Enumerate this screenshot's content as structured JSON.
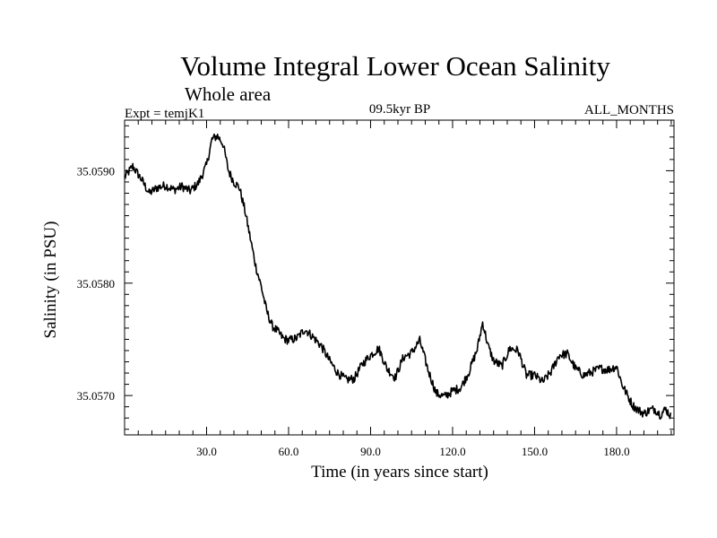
{
  "chart_data": {
    "type": "line",
    "title": "Volume Integral Lower Ocean Salinity",
    "subtitle": "Whole area",
    "experiment_label": "Expt = temjK1",
    "period_label": "09.5kyr BP",
    "months_label": "ALL_MONTHS",
    "xlabel": "Time (in years since start)",
    "ylabel": "Salinity (in PSU)",
    "xlim": [
      0,
      201
    ],
    "ylim": [
      35.05665,
      35.05945
    ],
    "x_ticks": [
      30,
      60,
      90,
      120,
      150,
      180
    ],
    "x_tick_labels": [
      "30.0",
      "60.0",
      "90.0",
      "120.0",
      "150.0",
      "180.0"
    ],
    "y_ticks": [
      35.057,
      35.058,
      35.059
    ],
    "y_tick_labels": [
      "35.0570",
      "35.0580",
      "35.0590"
    ],
    "grid": false,
    "legend": "none",
    "color": "#000000",
    "series": [
      {
        "name": "Volume integral lower ocean salinity",
        "x": [
          0,
          3,
          6,
          9,
          12,
          15,
          18,
          21,
          24,
          27,
          30,
          32,
          34,
          36,
          38,
          40,
          42,
          44,
          46,
          48,
          50,
          52,
          54,
          56,
          58,
          60,
          63,
          66,
          69,
          72,
          75,
          78,
          81,
          84,
          87,
          90,
          93,
          96,
          99,
          102,
          105,
          108,
          111,
          114,
          117,
          120,
          123,
          126,
          129,
          131,
          133,
          135,
          138,
          141,
          144,
          147,
          150,
          153,
          156,
          159,
          162,
          165,
          168,
          171,
          174,
          177,
          180,
          182,
          184,
          186,
          188,
          190,
          192,
          194,
          196,
          198,
          200
        ],
        "y": [
          35.05894,
          35.05904,
          35.05893,
          35.0588,
          35.05885,
          35.05887,
          35.05883,
          35.05886,
          35.05882,
          35.05889,
          35.05905,
          35.05928,
          35.05931,
          35.05924,
          35.059,
          35.0589,
          35.05885,
          35.05865,
          35.0584,
          35.05815,
          35.05797,
          35.05775,
          35.05762,
          35.05757,
          35.05751,
          35.05749,
          35.05751,
          35.05759,
          35.05752,
          35.05744,
          35.05731,
          35.0572,
          35.05714,
          35.05715,
          35.05728,
          35.05736,
          35.05742,
          35.05724,
          35.05716,
          35.05734,
          35.05738,
          35.05749,
          35.05723,
          35.05702,
          35.05699,
          35.05704,
          35.05707,
          35.05721,
          35.05741,
          35.05765,
          35.05744,
          35.05731,
          35.05726,
          35.05742,
          35.0574,
          35.05718,
          35.05718,
          35.05712,
          35.05721,
          35.05736,
          35.05737,
          35.05724,
          35.05718,
          35.05721,
          35.05724,
          35.05723,
          35.05726,
          35.0571,
          35.057,
          35.05691,
          35.05687,
          35.05684,
          35.05687,
          35.05688,
          35.05683,
          35.05688,
          35.05681
        ]
      }
    ]
  }
}
